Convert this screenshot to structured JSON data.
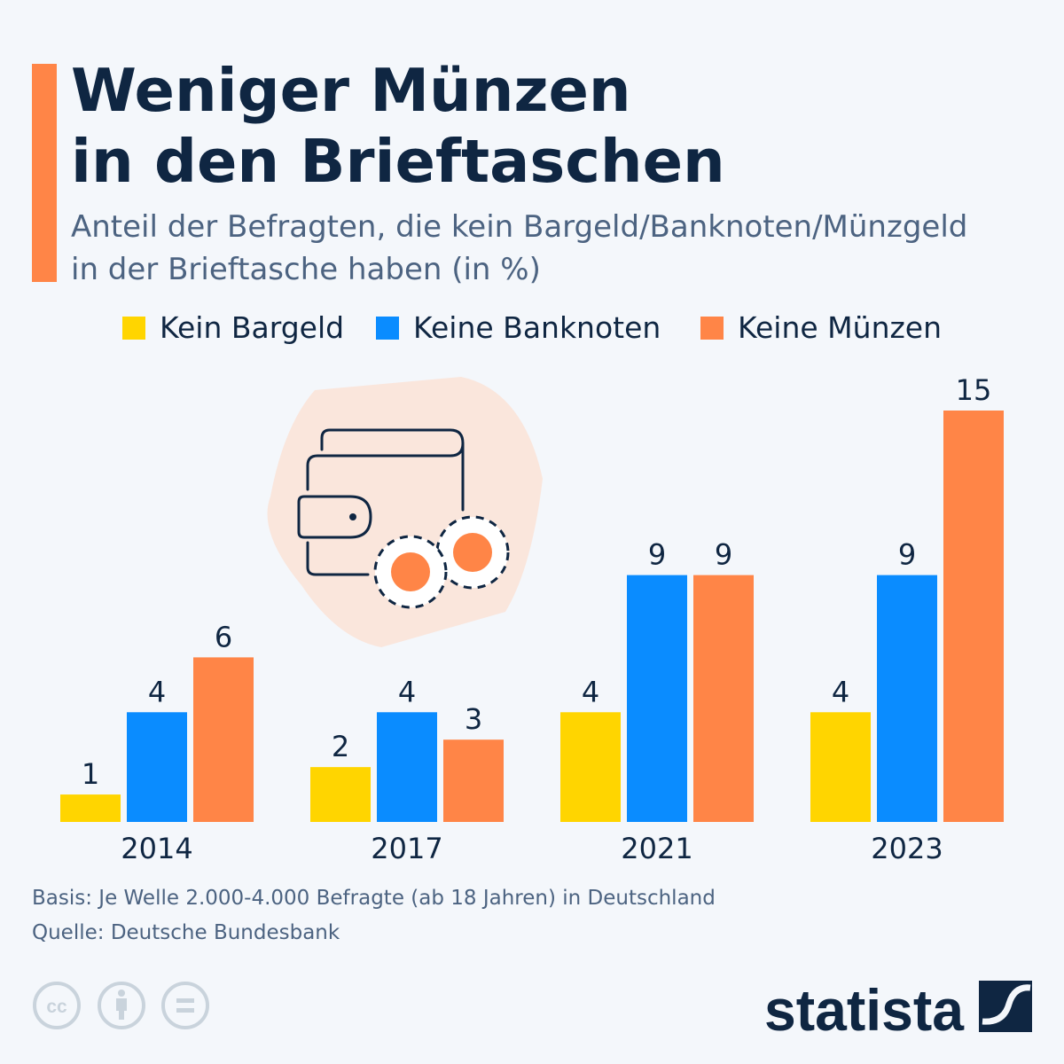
{
  "header": {
    "title_line1": "Weniger Münzen",
    "title_line2": "in den Brieftaschen",
    "subtitle_line1": "Anteil der Befragten, die kein Bargeld/Banknoten/Münzgeld",
    "subtitle_line2": "in der Brieftasche haben (in %)"
  },
  "colors": {
    "accent": "#ff8547",
    "navy": "#0f2642",
    "yellow": "#ffd500",
    "blue": "#0a8cff",
    "orange": "#ff8547"
  },
  "chart_data": {
    "type": "bar",
    "categories": [
      "2014",
      "2017",
      "2021",
      "2023"
    ],
    "series": [
      {
        "name": "Kein Bargeld",
        "color": "#ffd500",
        "values": [
          1,
          2,
          4,
          4
        ]
      },
      {
        "name": "Keine Banknoten",
        "color": "#0a8cff",
        "values": [
          4,
          4,
          9,
          9
        ]
      },
      {
        "name": "Keine Münzen",
        "color": "#ff8547",
        "values": [
          6,
          3,
          9,
          15
        ]
      }
    ],
    "ylim": [
      0,
      15
    ],
    "grid": false,
    "legend_position": "top",
    "data_labels": true
  },
  "illustration": {
    "icon": "wallet-with-coins-icon"
  },
  "footer": {
    "basis": "Basis: Je Welle 2.000-4.000 Befragte (ab 18 Jahren) in Deutschland",
    "source": "Quelle: Deutsche Bundesbank",
    "license_icons": [
      "cc-icon",
      "attribution-icon",
      "no-derivatives-icon"
    ],
    "brand": "statista"
  }
}
